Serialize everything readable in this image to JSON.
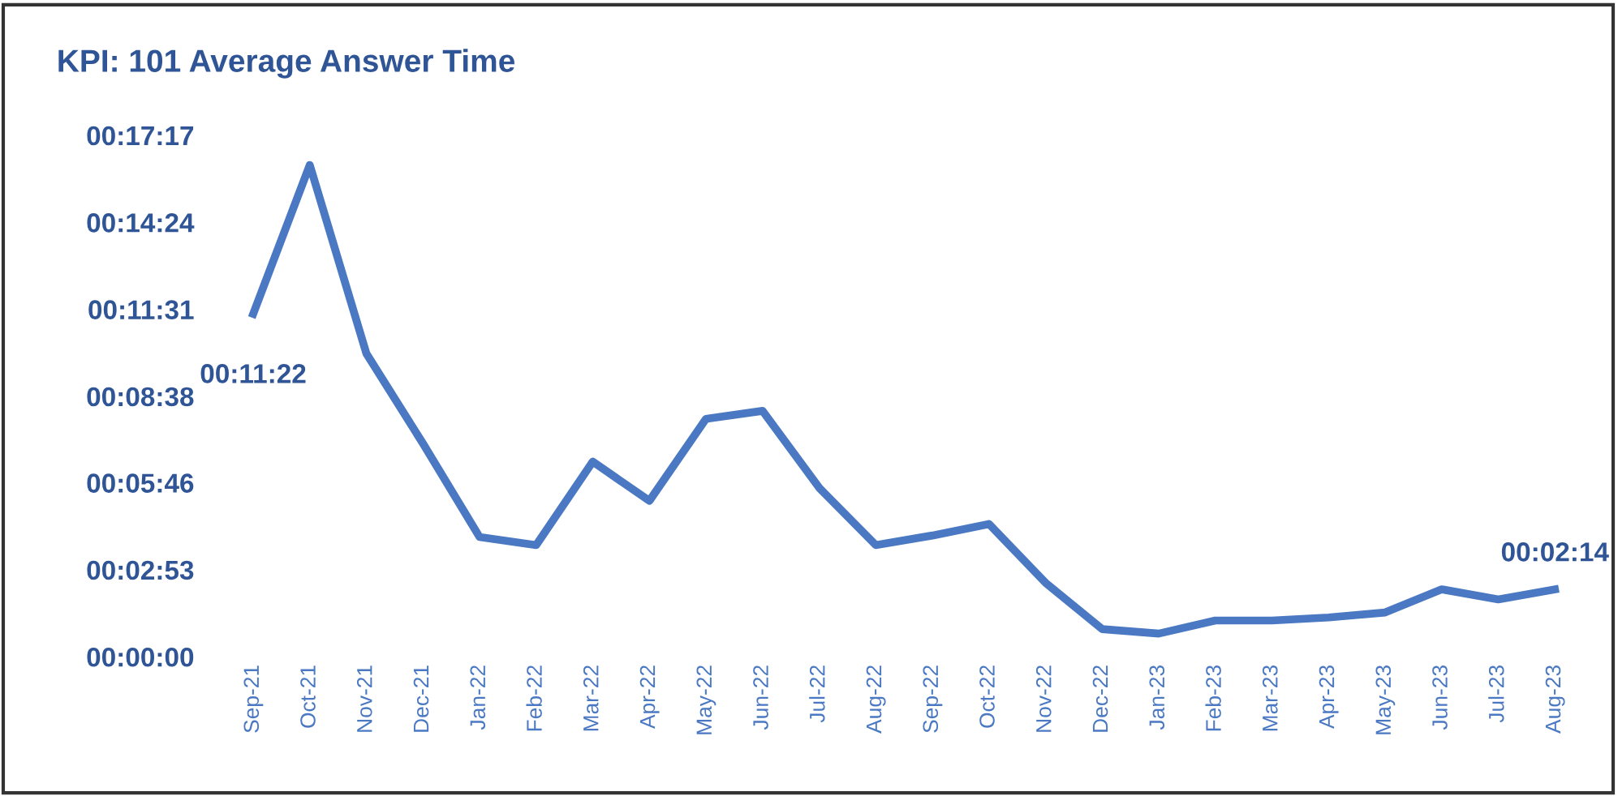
{
  "chart_data": {
    "type": "line",
    "title": "KPI: 101 Average Answer Time",
    "categories": [
      "Sep-21",
      "Oct-21",
      "Nov-21",
      "Dec-21",
      "Jan-22",
      "Feb-22",
      "Mar-22",
      "Apr-22",
      "May-22",
      "Jun-22",
      "Jul-22",
      "Aug-22",
      "Sep-22",
      "Oct-22",
      "Nov-22",
      "Dec-22",
      "Jan-23",
      "Feb-23",
      "Mar-23",
      "Apr-23",
      "May-23",
      "Jun-23",
      "Jul-23",
      "Aug-23"
    ],
    "series": [
      {
        "color": "#4a78c2",
        "values": [
          682,
          978,
          603,
          424,
          238,
          222,
          388,
          310,
          473,
          489,
          336,
          222,
          241,
          264,
          147,
          55,
          46,
          72,
          72,
          78,
          88,
          134,
          114,
          134
        ],
        "value_labels": [
          "00:11:22",
          null,
          null,
          null,
          null,
          null,
          null,
          null,
          null,
          null,
          null,
          null,
          null,
          null,
          null,
          null,
          null,
          null,
          null,
          null,
          null,
          null,
          null,
          "00:02:14"
        ]
      }
    ],
    "ylim": [
      0,
      1037
    ],
    "yticks": [
      {
        "value": 0,
        "label": "00:00:00"
      },
      {
        "value": 173,
        "label": "00:02:53"
      },
      {
        "value": 346,
        "label": "00:05:46"
      },
      {
        "value": 518,
        "label": "00:08:38"
      },
      {
        "value": 691,
        "label": "00:11:31"
      },
      {
        "value": 864,
        "label": "00:14:24"
      },
      {
        "value": 1037,
        "label": "00:17:17"
      }
    ],
    "grid": false,
    "legend": false,
    "marker": "none",
    "line_style": "solid"
  }
}
